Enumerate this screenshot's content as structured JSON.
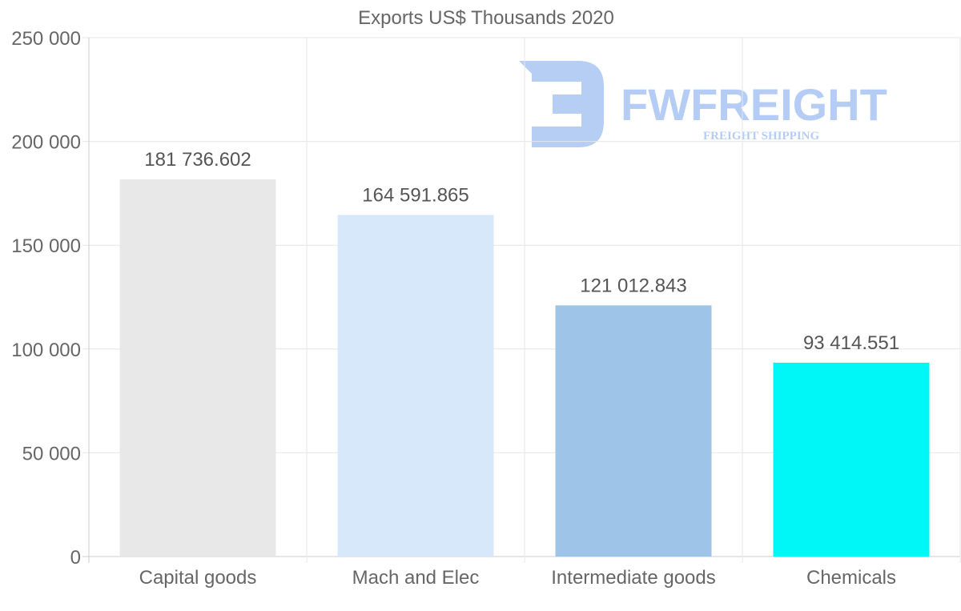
{
  "chart_data": {
    "type": "bar",
    "title": "Exports US$ Thousands 2020",
    "categories": [
      "Capital goods",
      "Mach and Elec",
      "Intermediate goods",
      "Chemicals"
    ],
    "values": [
      181736.602,
      164591.865,
      121012.843,
      93414.551
    ],
    "data_labels": [
      "181 736.602",
      "164 591.865",
      "121 012.843",
      "93 414.551"
    ],
    "bar_colors": [
      "#e8e8e8",
      "#d6e8fa",
      "#9ec5e8",
      "#00f7f7"
    ],
    "ylim": [
      0,
      250000
    ],
    "y_ticks": [
      0,
      50000,
      100000,
      150000,
      200000,
      250000
    ],
    "y_tick_labels": [
      "0",
      "50 000",
      "100 000",
      "150 000",
      "200 000",
      "250 000"
    ],
    "xlabel": "",
    "ylabel": "",
    "grid": true,
    "legend": "none"
  },
  "watermark": {
    "brand": "FWFREIGHT",
    "tagline": "FREIGHT SHIPPING",
    "color": "#2f6fe0"
  }
}
